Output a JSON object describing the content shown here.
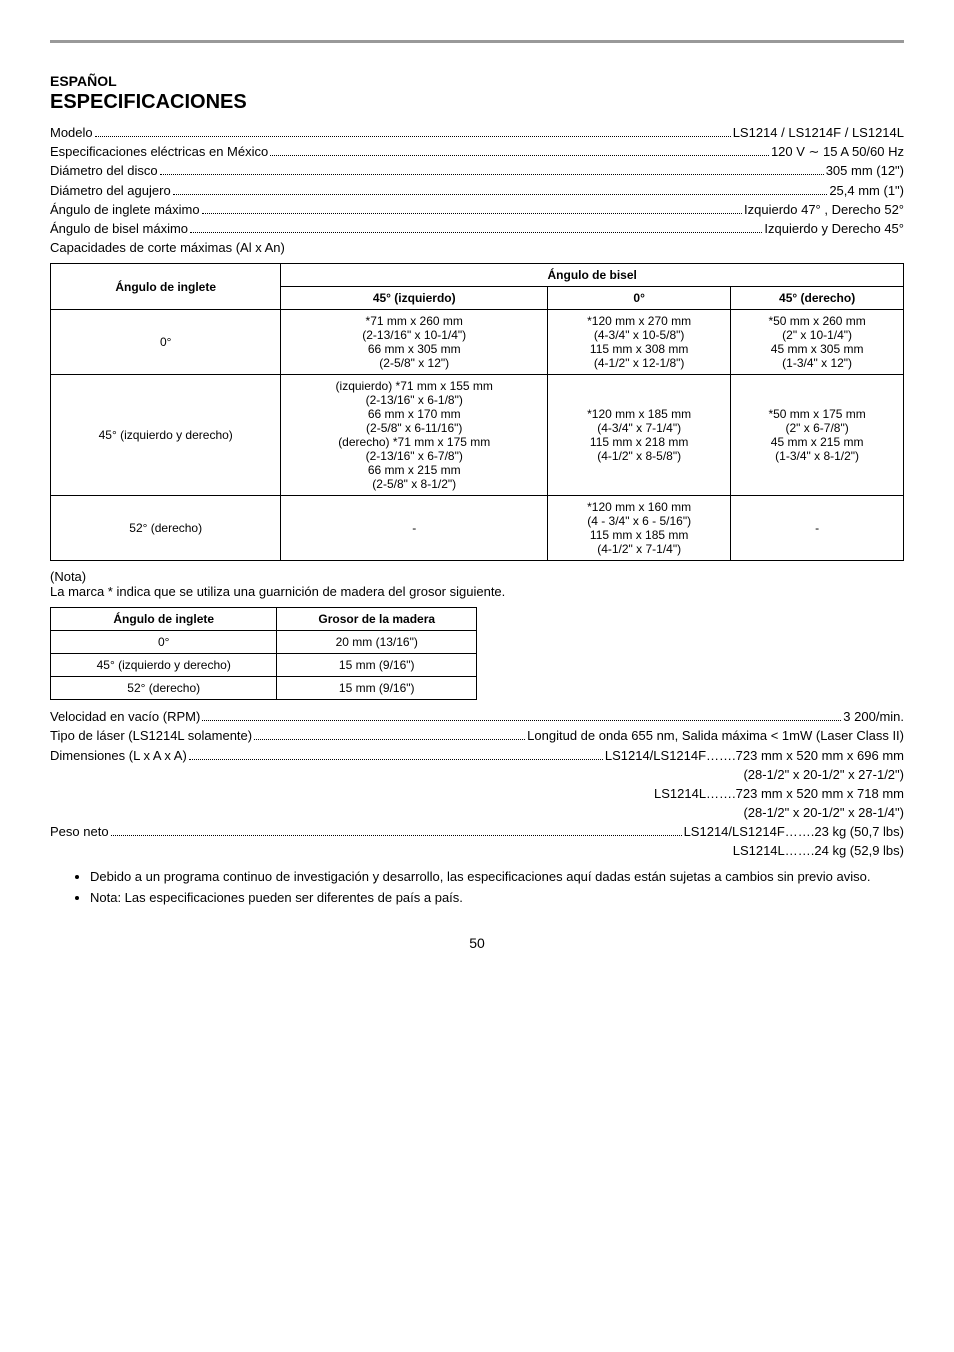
{
  "header": {
    "language": "ESPAÑOL",
    "title": "ESPECIFICACIONES"
  },
  "specsTop": [
    {
      "label": "Modelo",
      "value": "LS1214 / LS1214F / LS1214L"
    },
    {
      "label": "Especificaciones eléctricas en México",
      "value": "120 V ∼ 15 A  50/60 Hz"
    },
    {
      "label": "Diámetro del disco",
      "value": "305 mm (12\")"
    },
    {
      "label": "Diámetro del agujero",
      "value": "25,4 mm (1\")"
    },
    {
      "label": "Ángulo de inglete máximo",
      "value": "Izquierdo 47° , Derecho 52°"
    },
    {
      "label": "Ángulo de bisel máximo",
      "value": "Izquierdo y Derecho 45°"
    }
  ],
  "capacidadesLabel": "Capacidades de corte máximas (Al x An)",
  "mainTable": {
    "head1": "Ángulo de inglete",
    "head2": "Ángulo de bisel",
    "col1": "45° (izquierdo)",
    "col2": "0°",
    "col3": "45° (derecho)",
    "rows": [
      {
        "r": "0°",
        "c1": "*71 mm x 260 mm\n(2-13/16\" x 10-1/4\")\n66 mm x 305 mm\n(2-5/8\" x 12\")",
        "c2": "*120 mm x 270 mm\n(4-3/4\" x 10-5/8\")\n115 mm x 308 mm\n(4-1/2\" x 12-1/8\")",
        "c3": "*50 mm x 260 mm\n(2\" x 10-1/4\")\n45 mm x 305 mm\n(1-3/4\" x 12\")"
      },
      {
        "r": "45° (izquierdo y derecho)",
        "c1": "(izquierdo) *71 mm x 155 mm\n(2-13/16\" x 6-1/8\")\n66 mm x 170 mm\n(2-5/8\" x 6-11/16\")\n(derecho) *71 mm x 175 mm\n(2-13/16\" x 6-7/8\")\n66 mm x 215 mm\n(2-5/8\" x 8-1/2\")",
        "c2": "*120 mm x 185 mm\n(4-3/4\" x 7-1/4\")\n115 mm x 218 mm\n(4-1/2\" x 8-5/8\")",
        "c3": "*50 mm x 175 mm\n(2\" x 6-7/8\")\n45 mm x 215 mm\n(1-3/4\" x 8-1/2\")"
      },
      {
        "r": "52° (derecho)",
        "c1": "-",
        "c2": "*120 mm x 160 mm\n(4 - 3/4\" x 6 - 5/16\")\n115 mm x 185 mm\n(4-1/2\" x 7-1/4\")",
        "c3": "-"
      }
    ]
  },
  "notaTitle": "(Nota)",
  "notaText": "La marca * indica que se utiliza una guarnición de madera del grosor siguiente.",
  "smallTable": {
    "head1": "Ángulo de inglete",
    "head2": "Grosor de la madera",
    "rows": [
      {
        "c1": "0°",
        "c2": "20 mm (13/16\")"
      },
      {
        "c1": "45° (izquierdo y derecho)",
        "c2": "15 mm (9/16\")"
      },
      {
        "c1": "52° (derecho)",
        "c2": "15 mm (9/16\")"
      }
    ]
  },
  "specsBottom": [
    {
      "label": "Velocidad en vacío (RPM)",
      "value": "3 200/min."
    },
    {
      "label": "Tipo de láser (LS1214L solamente)",
      "value": "Longitud de onda 655 nm, Salida máxima < 1mW (Laser Class II)"
    },
    {
      "label": "Dimensiones (L x A x A)",
      "value": "LS1214/LS1214F…….723 mm x 520 mm x 696 mm"
    }
  ],
  "rightLines1": [
    "(28-1/2\" x 20-1/2\" x 27-1/2\")",
    "LS1214L…….723 mm x 520 mm x 718 mm",
    "(28-1/2\" x 20-1/2\" x 28-1/4\")"
  ],
  "peso": {
    "label": "Peso neto",
    "value": "LS1214/LS1214F…….23 kg (50,7 lbs)"
  },
  "rightLines2": [
    "LS1214L…….24 kg (52,9 lbs)"
  ],
  "bullets": [
    "Debido a un programa continuo de investigación y desarrollo, las especificaciones aquí dadas están sujetas a cambios sin previo aviso.",
    "Nota: Las especificaciones pueden ser diferentes de país a país."
  ],
  "pageNumber": "50"
}
